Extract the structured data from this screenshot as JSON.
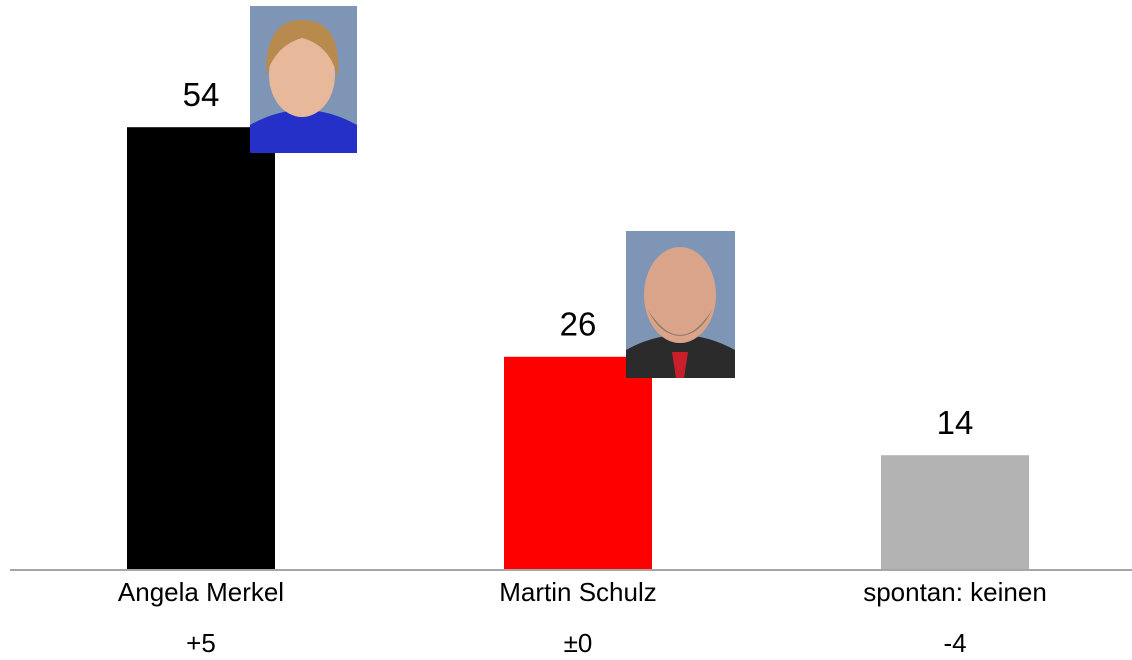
{
  "chart_data": {
    "type": "bar",
    "categories": [
      "Angela Merkel",
      "Martin Schulz",
      "spontan: keinen"
    ],
    "values": [
      54,
      26,
      14
    ],
    "colors": [
      "#000000",
      "#ff0000",
      "#b3b3b3"
    ],
    "changes": [
      "+5",
      "±0",
      "-4"
    ]
  }
}
